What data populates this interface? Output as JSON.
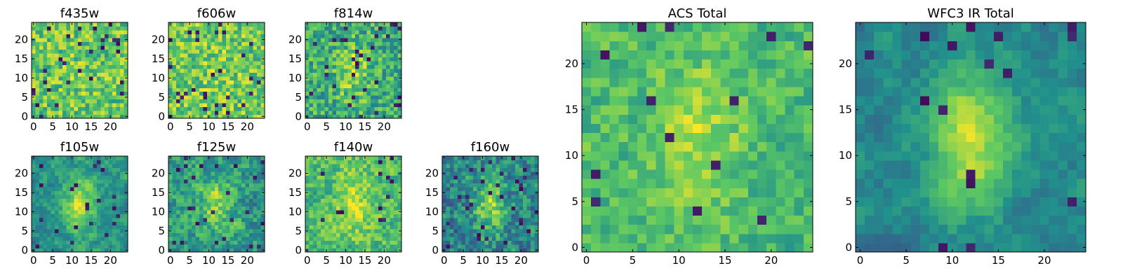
{
  "chart_data": [
    {
      "type": "heatmap",
      "title": "f435w",
      "n": 25,
      "seed": 11,
      "base": 0.74,
      "noise": 0.22,
      "blob": 0.04,
      "smooth": 0,
      "dark_rate": 0.05,
      "xticks": [
        0,
        5,
        10,
        15,
        20
      ],
      "yticks": [
        0,
        5,
        10,
        15,
        20
      ]
    },
    {
      "type": "heatmap",
      "title": "f606w",
      "n": 25,
      "seed": 23,
      "base": 0.76,
      "noise": 0.22,
      "blob": 0.04,
      "smooth": 0,
      "dark_rate": 0.04,
      "xticks": [
        0,
        5,
        10,
        15,
        20
      ],
      "yticks": [
        0,
        5,
        10,
        15,
        20
      ]
    },
    {
      "type": "heatmap",
      "title": "f814w",
      "n": 25,
      "seed": 37,
      "base": 0.62,
      "noise": 0.22,
      "blob": 0.22,
      "smooth": 0,
      "dark_rate": 0.05,
      "xticks": [
        0,
        5,
        10,
        15,
        20
      ],
      "yticks": [
        0,
        5,
        10,
        15,
        20
      ]
    },
    {
      "type": "heatmap",
      "title": "f105w",
      "n": 25,
      "seed": 41,
      "base": 0.5,
      "noise": 0.2,
      "blob": 0.42,
      "smooth": 0.5,
      "dark_rate": 0.04,
      "xticks": [
        0,
        5,
        10,
        15,
        20
      ],
      "yticks": [
        0,
        5,
        10,
        15,
        20
      ]
    },
    {
      "type": "heatmap",
      "title": "f125w",
      "n": 25,
      "seed": 53,
      "base": 0.55,
      "noise": 0.24,
      "blob": 0.25,
      "smooth": 0.35,
      "dark_rate": 0.05,
      "xticks": [
        0,
        5,
        10,
        15,
        20
      ],
      "yticks": [
        0,
        5,
        10,
        15,
        20
      ]
    },
    {
      "type": "heatmap",
      "title": "f140w",
      "n": 25,
      "seed": 67,
      "base": 0.7,
      "noise": 0.2,
      "blob": 0.22,
      "smooth": 0.25,
      "dark_rate": 0.02,
      "xticks": [
        0,
        5,
        10,
        15,
        20
      ],
      "yticks": [
        0,
        5,
        10,
        15,
        20
      ]
    },
    {
      "type": "heatmap",
      "title": "f160w",
      "n": 25,
      "seed": 79,
      "base": 0.45,
      "noise": 0.24,
      "blob": 0.38,
      "smooth": 0.2,
      "dark_rate": 0.06,
      "xticks": [
        0,
        5,
        10,
        15,
        20
      ],
      "yticks": [
        0,
        5,
        10,
        15,
        20
      ]
    },
    {
      "type": "heatmap",
      "title": "ACS Total",
      "n": 25,
      "seed": 83,
      "base": 0.68,
      "noise": 0.16,
      "blob": 0.22,
      "smooth": 0.2,
      "dark_rate": 0.025,
      "xticks": [
        0,
        5,
        10,
        15,
        20
      ],
      "yticks": [
        0,
        5,
        10,
        15,
        20
      ]
    },
    {
      "type": "heatmap",
      "title": "WFC3 IR Total",
      "n": 25,
      "seed": 97,
      "base": 0.46,
      "noise": 0.14,
      "blob": 0.45,
      "smooth": 0.55,
      "dark_rate": 0.03,
      "xticks": [
        0,
        5,
        10,
        15,
        20
      ],
      "yticks": [
        0,
        5,
        10,
        15,
        20
      ]
    }
  ],
  "colormap": [
    "#440154",
    "#3b528b",
    "#21918c",
    "#5ec962",
    "#fde725"
  ]
}
